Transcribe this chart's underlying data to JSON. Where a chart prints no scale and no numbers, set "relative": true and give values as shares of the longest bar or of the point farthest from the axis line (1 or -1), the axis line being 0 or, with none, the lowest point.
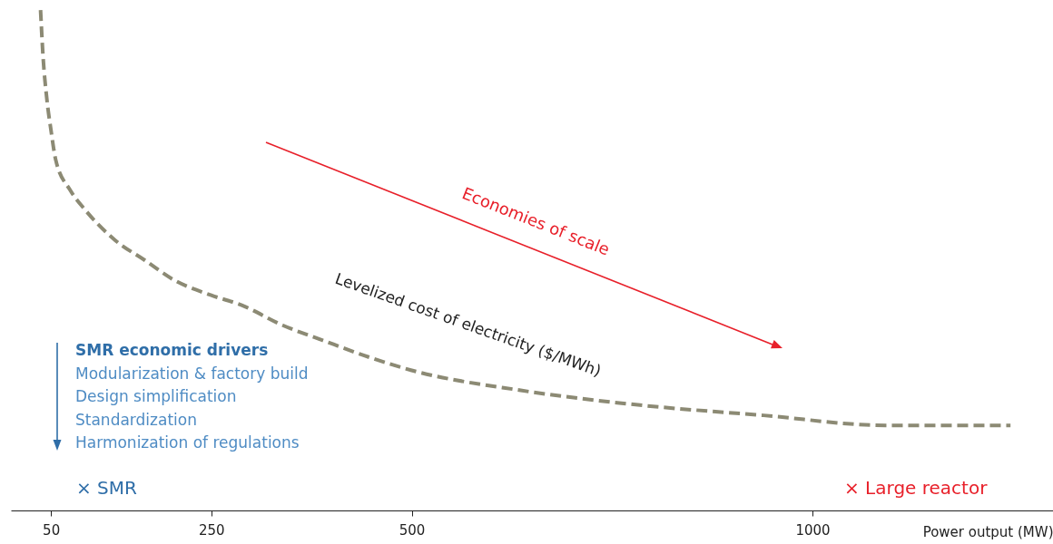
{
  "chart_data": {
    "type": "line",
    "relative": true,
    "xlabel": "Power output (MW)",
    "xlim": [
      0,
      1300
    ],
    "xticks": [
      50,
      250,
      500,
      1000
    ],
    "line_style": "dashed",
    "series": [
      {
        "name": "Levelized cost of electricity ($/MWh)",
        "color": "#8c8a74",
        "x": [
          37,
          40,
          45,
          50,
          56,
          74,
          93,
          130,
          167,
          204,
          250,
          288,
          339,
          389,
          440,
          500,
          636,
          788,
          939,
          1091,
          1247
        ],
        "values": [
          1.0,
          0.91,
          0.82,
          0.76,
          0.7,
          0.64,
          0.6,
          0.54,
          0.5,
          0.46,
          0.43,
          0.41,
          0.37,
          0.34,
          0.31,
          0.28,
          0.24,
          0.21,
          0.19,
          0.17,
          0.17
        ]
      }
    ],
    "annotations": [
      "Economies of scale",
      "SMR economic drivers",
      "Modularization & factory build",
      "Design simplification",
      "Standardization",
      "Harmonization of regulations",
      "× SMR",
      "× Large reactor"
    ]
  }
}
